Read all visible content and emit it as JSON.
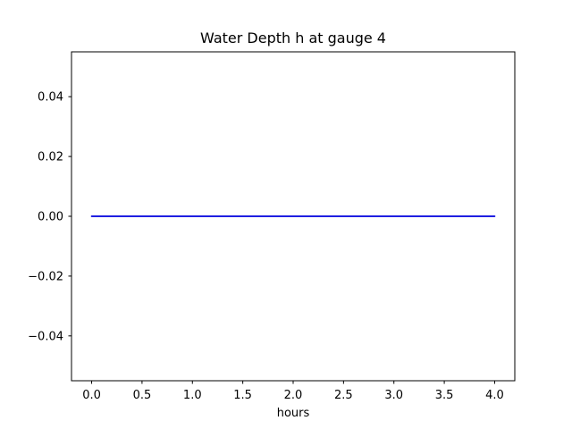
{
  "chart_data": {
    "type": "line",
    "title": "Water Depth h at gauge 4",
    "xlabel": "hours",
    "ylabel": "",
    "xlim": [
      -0.2,
      4.2
    ],
    "ylim": [
      -0.055,
      0.055
    ],
    "grid": false,
    "legend": false,
    "xticks": [
      0.0,
      0.5,
      1.0,
      1.5,
      2.0,
      2.5,
      3.0,
      3.5,
      4.0
    ],
    "xtick_labels": [
      "0.0",
      "0.5",
      "1.0",
      "1.5",
      "2.0",
      "2.5",
      "3.0",
      "3.5",
      "4.0"
    ],
    "yticks": [
      -0.04,
      -0.02,
      0.0,
      0.02,
      0.04
    ],
    "ytick_labels": [
      "−0.04",
      "−0.02",
      "0.00",
      "0.02",
      "0.04"
    ],
    "series": [
      {
        "name": "water-depth-h",
        "color": "#0000dd",
        "x": [
          0.0,
          4.0
        ],
        "y": [
          0.0,
          0.0
        ]
      }
    ]
  },
  "colors": {
    "background": "#ffffff",
    "axis": "#000000",
    "line": "#0000dd"
  }
}
